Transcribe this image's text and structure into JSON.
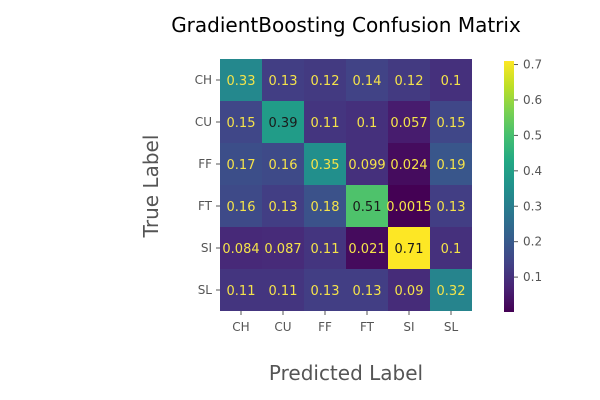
{
  "chart_data": {
    "type": "heatmap",
    "title": "GradientBoosting Confusion Matrix",
    "xlabel": "Predicted Label",
    "ylabel": "True Label",
    "x_categories": [
      "CH",
      "CU",
      "FF",
      "FT",
      "SI",
      "SL"
    ],
    "y_categories": [
      "CH",
      "CU",
      "FF",
      "FT",
      "SI",
      "SL"
    ],
    "values": [
      [
        0.33,
        0.13,
        0.12,
        0.14,
        0.12,
        0.1
      ],
      [
        0.15,
        0.39,
        0.11,
        0.1,
        0.057,
        0.15
      ],
      [
        0.17,
        0.16,
        0.35,
        0.099,
        0.024,
        0.19
      ],
      [
        0.16,
        0.13,
        0.18,
        0.51,
        0.0015,
        0.13
      ],
      [
        0.084,
        0.087,
        0.11,
        0.021,
        0.71,
        0.1
      ],
      [
        0.11,
        0.11,
        0.13,
        0.13,
        0.09,
        0.32
      ]
    ],
    "cell_labels": [
      [
        "0.33",
        "0.13",
        "0.12",
        "0.14",
        "0.12",
        "0.1"
      ],
      [
        "0.15",
        "0.39",
        "0.11",
        "0.1",
        "0.057",
        "0.15"
      ],
      [
        "0.17",
        "0.16",
        "0.35",
        "0.099",
        "0.024",
        "0.19"
      ],
      [
        "0.16",
        "0.13",
        "0.18",
        "0.51",
        "0.0015",
        "0.13"
      ],
      [
        "0.084",
        "0.087",
        "0.11",
        "0.021",
        "0.71",
        "0.1"
      ],
      [
        "0.11",
        "0.11",
        "0.13",
        "0.13",
        "0.09",
        "0.32"
      ]
    ],
    "colormap": "viridis",
    "colorbar": {
      "range": [
        0.0015,
        0.71
      ],
      "ticks": [
        0.1,
        0.2,
        0.3,
        0.4,
        0.5,
        0.6,
        0.7
      ],
      "tick_labels": [
        "0.1",
        "0.2",
        "0.3",
        "0.4",
        "0.5",
        "0.6",
        "0.7"
      ]
    },
    "grid": false
  }
}
